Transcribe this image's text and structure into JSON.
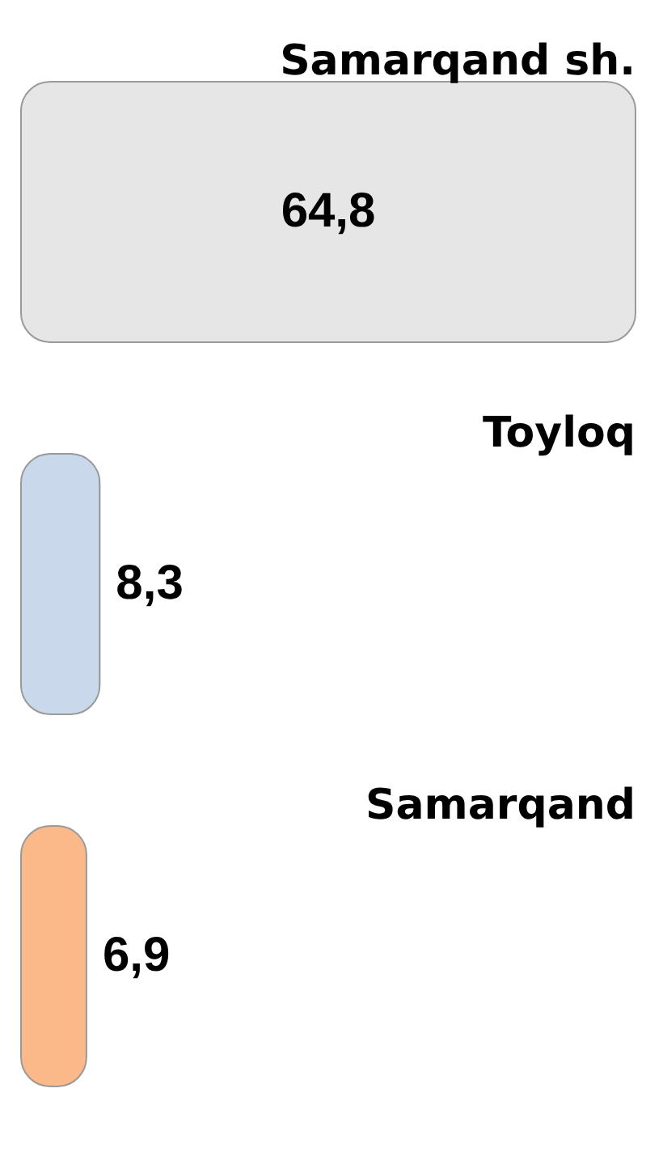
{
  "chart_data": {
    "type": "bar",
    "orientation": "horizontal",
    "categories": [
      "Samarqand sh.",
      "Toyloq",
      "Samarqand"
    ],
    "values": [
      64.8,
      8.3,
      6.9
    ],
    "value_labels": [
      "64,8",
      "8,3",
      "6,9"
    ],
    "colors": [
      "#e6e6e6",
      "#c9d8ea",
      "#fbb98a"
    ]
  }
}
